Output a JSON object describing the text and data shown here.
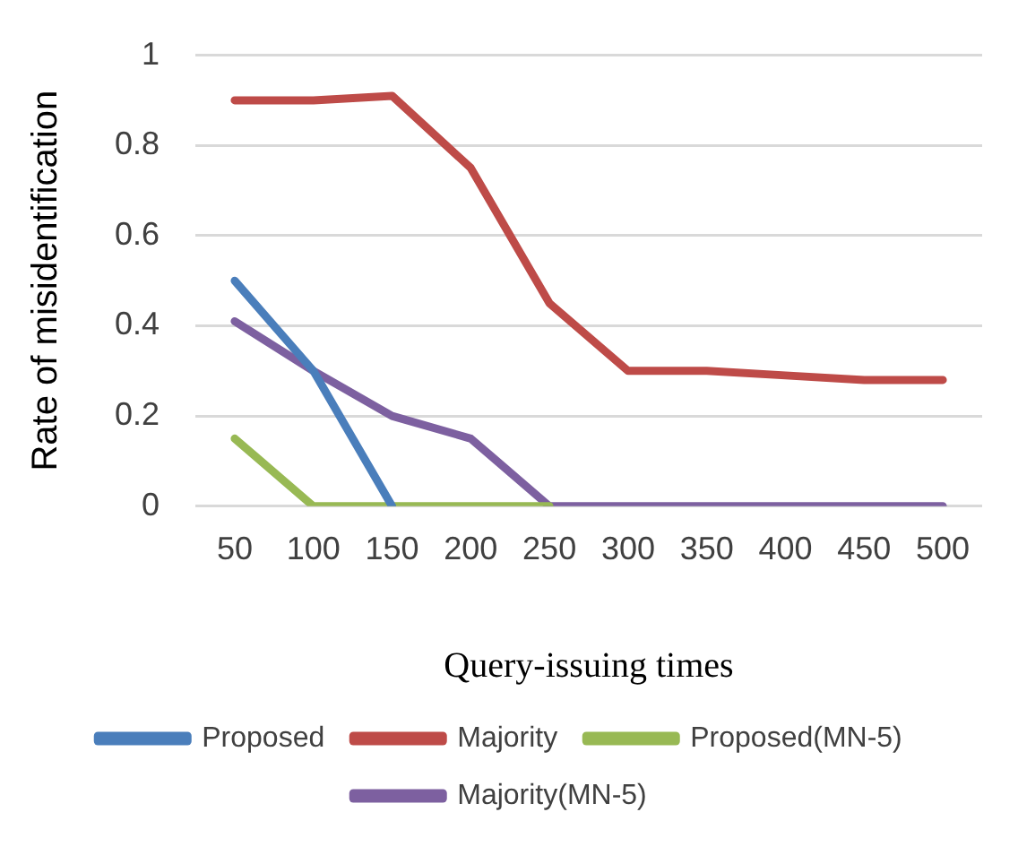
{
  "chart_data": {
    "type": "line",
    "xlabel": "Query-issuing times",
    "ylabel": "Rate of misidentification",
    "categories": [
      "50",
      "100",
      "150",
      "200",
      "250",
      "300",
      "350",
      "400",
      "450",
      "500"
    ],
    "series": [
      {
        "name": "Proposed",
        "color": "#4a7ebb",
        "values": [
          0.5,
          0.3,
          0,
          null,
          null,
          null,
          null,
          null,
          null,
          null
        ]
      },
      {
        "name": "Majority",
        "color": "#be4b48",
        "values": [
          0.9,
          0.9,
          0.91,
          0.75,
          0.45,
          0.3,
          0.3,
          0.29,
          0.28,
          0.28
        ]
      },
      {
        "name": "Proposed(MN-5)",
        "color": "#98b954",
        "values": [
          0.15,
          0,
          0,
          0,
          0,
          null,
          null,
          null,
          null,
          null
        ]
      },
      {
        "name": "Majority(MN-5)",
        "color": "#7d60a0",
        "values": [
          0.41,
          0.3,
          0.2,
          0.15,
          0,
          0,
          0,
          0,
          0,
          0
        ]
      }
    ],
    "ylim": [
      0,
      1
    ],
    "yticks": [
      0,
      0.2,
      0.4,
      0.6,
      0.8,
      1
    ],
    "grid": "y",
    "legend": "bottom",
    "marker": "none",
    "line_style": "solid"
  }
}
